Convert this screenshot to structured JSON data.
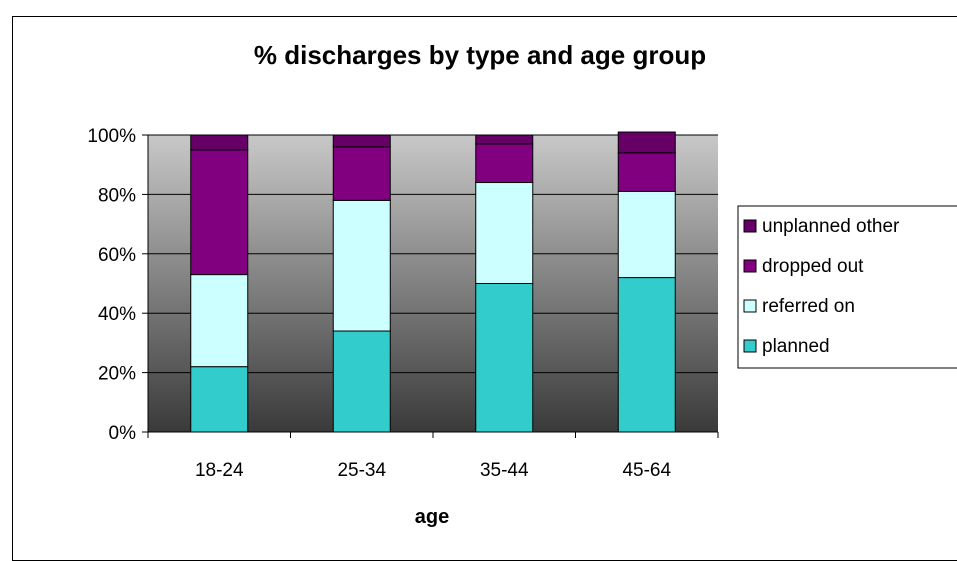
{
  "chart_data": {
    "type": "bar",
    "stacked": true,
    "title": "% discharges by type and age group",
    "xlabel": "age",
    "ylabel": "",
    "ylim": [
      0,
      100
    ],
    "y_ticks": [
      "0%",
      "20%",
      "40%",
      "60%",
      "80%",
      "100%"
    ],
    "categories": [
      "18-24",
      "25-34",
      "35-44",
      "45-64"
    ],
    "series": [
      {
        "name": "planned",
        "color": "#33cccc",
        "values": [
          22,
          34,
          50,
          52
        ]
      },
      {
        "name": "referred on",
        "color": "#ccffff",
        "values": [
          31,
          44,
          34,
          29
        ]
      },
      {
        "name": "dropped out",
        "color": "#800080",
        "values": [
          42,
          18,
          13,
          13
        ]
      },
      {
        "name": "unplanned other",
        "color": "#660066",
        "values": [
          5,
          4,
          3,
          7
        ]
      }
    ],
    "legend_order": [
      "unplanned other",
      "dropped out",
      "referred on",
      "planned"
    ],
    "legend_position": "right",
    "grid": true
  }
}
